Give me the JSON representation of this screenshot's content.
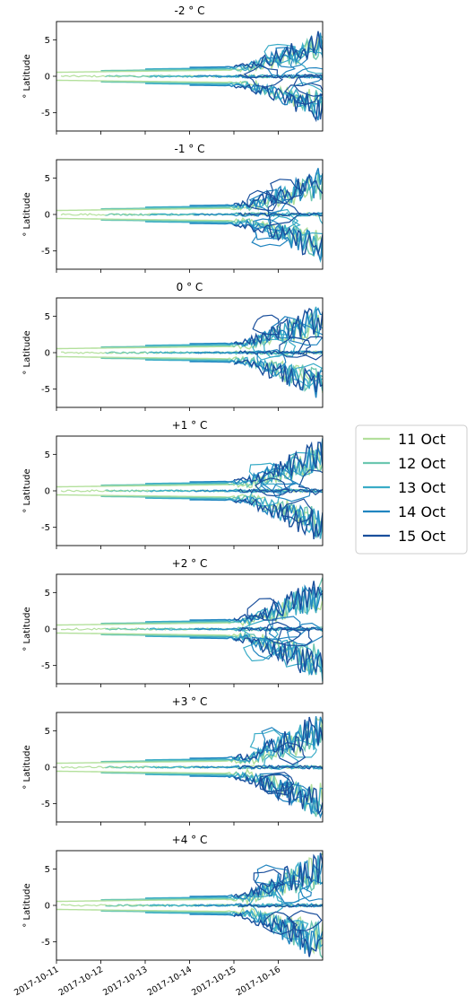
{
  "chart_data": {
    "type": "line",
    "ylabel": "° Latitude",
    "ylim": [
      -7.5,
      7.5
    ],
    "yticks": [
      -5,
      0,
      5
    ],
    "x_start": "2017-10-11",
    "x_end": "2017-10-17",
    "xtick_labels": [
      "2017-10-11",
      "2017-10-12",
      "2017-10-13",
      "2017-10-14",
      "2017-10-15",
      "2017-10-16"
    ],
    "panels": [
      {
        "title": "-2 ° C"
      },
      {
        "title": "-1 ° C"
      },
      {
        "title": "0 ° C"
      },
      {
        "title": "+1 ° C"
      },
      {
        "title": "+2 ° C"
      },
      {
        "title": "+3 ° C"
      },
      {
        "title": "+4 ° C"
      }
    ],
    "legend_position": "right",
    "series": [
      {
        "name": "11 Oct",
        "color": "#b3e09c",
        "start_day": 0.0
      },
      {
        "name": "12 Oct",
        "color": "#6cc7b0",
        "start_day": 1.0
      },
      {
        "name": "13 Oct",
        "color": "#3aacc7",
        "start_day": 2.0
      },
      {
        "name": "14 Oct",
        "color": "#2185c0",
        "start_day": 3.0
      },
      {
        "name": "15 Oct",
        "color": "#1a4f9c",
        "start_day": 4.0
      }
    ]
  }
}
